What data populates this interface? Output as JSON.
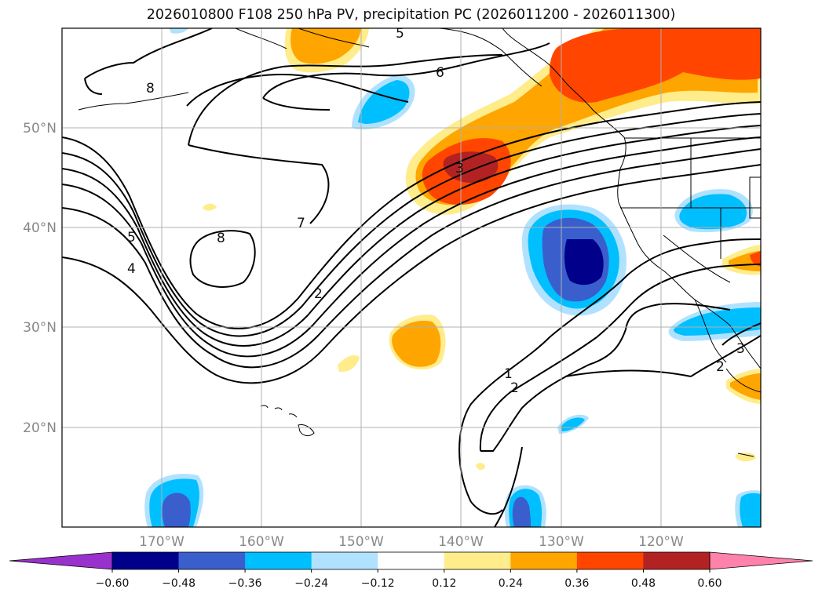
{
  "title": "2026010800 F108 250 hPa PV, precipitation PC (2026011200 - 2026011300)",
  "map": {
    "lat_labels": [
      "50°N",
      "40°N",
      "30°N",
      "20°N"
    ],
    "lon_labels": [
      "170°W",
      "160°W",
      "150°W",
      "140°W",
      "130°W",
      "120°W"
    ],
    "pv_contour_labels": [
      "8",
      "5",
      "6",
      "3",
      "7",
      "8",
      "5",
      "4",
      "2",
      "1",
      "2",
      "3",
      "2"
    ]
  },
  "colorbar": {
    "ticks": [
      "−0.60",
      "−0.48",
      "−0.36",
      "−0.24",
      "−0.12",
      "0.12",
      "0.24",
      "0.36",
      "0.48",
      "0.60"
    ],
    "colors": [
      "#9932cc",
      "#00008b",
      "#3a5fcd",
      "#00bfff",
      "#b0e2ff",
      "#ffffff",
      "#ffec8b",
      "#ffa500",
      "#ff4500",
      "#b22222",
      "#ff82ab"
    ]
  }
}
